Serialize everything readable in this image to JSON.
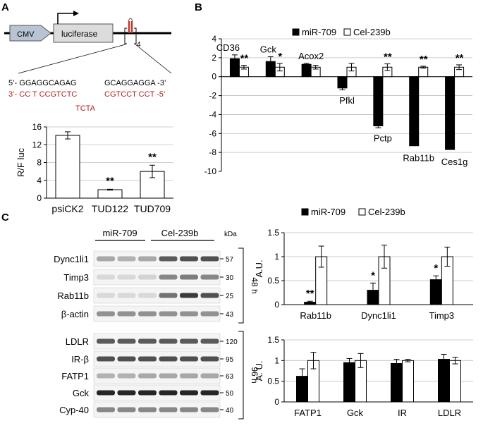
{
  "panels": {
    "a": "A",
    "b": "B",
    "c": "C"
  },
  "construct": {
    "cmv": "CMV",
    "luciferase": "luciferase",
    "repeat": "4",
    "seq_top_left": "5’- GGAGGCAGAG",
    "seq_top_right": "GCAGGAGGA -3’",
    "seq_bottom_left": "3’- CC T CCGTCTC",
    "seq_bottom_right": "CGTCCT CCT -5’",
    "seq_loop": "TCTA",
    "colors": {
      "seq_red": "#b22222",
      "uorf_red": "#c0392b"
    }
  },
  "blot": {
    "group_labels": [
      "miR-709",
      "Cel-239b"
    ],
    "kda_label": "kDa",
    "time_48": "48 h",
    "time_96": "96 h",
    "proteins_48": [
      {
        "name": "Dync1li1",
        "kda": "57"
      },
      {
        "name": "Timp3",
        "kda": "30"
      },
      {
        "name": "Rab11b",
        "kda": "25"
      },
      {
        "name": "β-actin",
        "kda": "43"
      }
    ],
    "proteins_96": [
      {
        "name": "LDLR",
        "kda": "120"
      },
      {
        "name": "IR-β",
        "kda": "95"
      },
      {
        "name": "FATP1",
        "kda": "63"
      },
      {
        "name": "Gck",
        "kda": "50"
      },
      {
        "name": "Cyp-40",
        "kda": "40"
      }
    ]
  },
  "chart_data": [
    {
      "id": "A",
      "type": "bar",
      "categories": [
        "psiCK2",
        "TUD122",
        "TUD709"
      ],
      "values": [
        14.1,
        1.9,
        6.0
      ],
      "errors": [
        0.8,
        0.1,
        1.4
      ],
      "significance": [
        "",
        "**",
        "**"
      ],
      "ylabel": "R/F luc",
      "ylim": [
        0,
        16
      ],
      "yticks": [
        "0",
        "4",
        "8",
        "12",
        "16"
      ],
      "grid": true
    },
    {
      "id": "B",
      "type": "bar",
      "categories": [
        "CD36",
        "Gck",
        "Acox2",
        "Pfkl",
        "Pctp",
        "Rab11b",
        "Ces1g"
      ],
      "series": [
        {
          "name": "miR-709",
          "values": [
            1.9,
            1.6,
            1.3,
            -1.2,
            -5.2,
            -7.3,
            -7.7
          ],
          "errors": [
            0.4,
            0.5,
            0.1,
            0.2,
            0.2,
            0.0,
            0.0
          ],
          "color": "#000000"
        },
        {
          "name": "Cel-239b",
          "values": [
            1.0,
            1.0,
            1.0,
            1.0,
            1.0,
            1.0,
            1.0
          ],
          "errors": [
            0.2,
            0.4,
            0.2,
            0.4,
            0.35,
            0.1,
            0.25
          ],
          "color": "#ffffff"
        }
      ],
      "significance": [
        "**",
        "*",
        "",
        "",
        "**",
        "**",
        "**"
      ],
      "ylim": [
        -10,
        4
      ],
      "yticks": [
        "-10",
        "-8",
        "-6",
        "-4",
        "-2",
        "0",
        "2",
        "4"
      ],
      "legend": "top",
      "grid": true
    },
    {
      "id": "C-48h",
      "type": "bar",
      "categories": [
        "Rab11b",
        "Dync1li1",
        "Timp3"
      ],
      "series": [
        {
          "name": "miR-709",
          "values": [
            0.05,
            0.3,
            0.52
          ],
          "errors": [
            0.02,
            0.15,
            0.08
          ],
          "color": "#000000"
        },
        {
          "name": "Cel-239b",
          "values": [
            1.0,
            1.0,
            1.0
          ],
          "errors": [
            0.22,
            0.24,
            0.2
          ],
          "color": "#ffffff"
        }
      ],
      "significance": [
        "**",
        "*",
        "*"
      ],
      "ylabel": "A.U.",
      "ylim": [
        0,
        1.5
      ],
      "yticks": [
        "0",
        "0.5",
        "1",
        "1.5"
      ],
      "legend": "top",
      "grid": true
    },
    {
      "id": "C-96h",
      "type": "bar",
      "categories": [
        "FATP1",
        "Gck",
        "IR",
        "LDLR"
      ],
      "series": [
        {
          "name": "miR-709",
          "values": [
            0.62,
            0.95,
            0.93,
            1.03
          ],
          "errors": [
            0.18,
            0.1,
            0.1,
            0.12
          ],
          "color": "#000000"
        },
        {
          "name": "Cel-239b",
          "values": [
            1.0,
            1.0,
            1.0,
            1.0
          ],
          "errors": [
            0.2,
            0.17,
            0.03,
            0.08
          ],
          "color": "#ffffff"
        }
      ],
      "significance": [
        "",
        "",
        "",
        ""
      ],
      "ylabel": "A. U.",
      "ylim": [
        0,
        1.5
      ],
      "yticks": [
        "0",
        "0.5",
        "1",
        "1.5"
      ],
      "grid": true
    }
  ]
}
